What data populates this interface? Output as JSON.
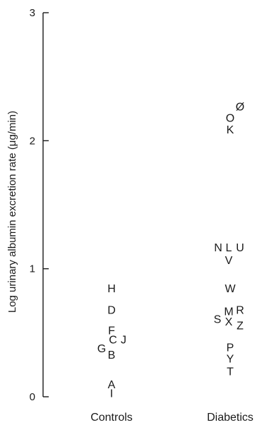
{
  "chart_data": {
    "type": "scatter",
    "title": "",
    "xlabel": "",
    "ylabel": "Log urinary albumin excretion rate (μg/min)",
    "ylim": [
      0,
      3
    ],
    "yticks": [
      "0",
      "1",
      "2",
      "3"
    ],
    "categories": [
      "Controls",
      "Diabetics"
    ],
    "grid": false,
    "series": [
      {
        "points": [
          {
            "label": "H",
            "x": "Controls",
            "y": 0.85
          },
          {
            "label": "D",
            "x": "Controls",
            "y": 0.68
          },
          {
            "label": "F",
            "x": "Controls",
            "y": 0.52
          },
          {
            "label": "C",
            "x": "Controls",
            "y": 0.45
          },
          {
            "label": "J",
            "x": "Controls",
            "y": 0.45
          },
          {
            "label": "G",
            "x": "Controls",
            "y": 0.38
          },
          {
            "label": "B",
            "x": "Controls",
            "y": 0.33
          },
          {
            "label": "A",
            "x": "Controls",
            "y": 0.1
          },
          {
            "label": "I",
            "x": "Controls",
            "y": 0.03
          }
        ]
      },
      {
        "points": [
          {
            "label": "Ø",
            "x": "Diabetics",
            "y": 2.27
          },
          {
            "label": "O",
            "x": "Diabetics",
            "y": 2.18
          },
          {
            "label": "K",
            "x": "Diabetics",
            "y": 2.09
          },
          {
            "label": "N",
            "x": "Diabetics",
            "y": 1.17
          },
          {
            "label": "L",
            "x": "Diabetics",
            "y": 1.17
          },
          {
            "label": "U",
            "x": "Diabetics",
            "y": 1.17
          },
          {
            "label": "V",
            "x": "Diabetics",
            "y": 1.07
          },
          {
            "label": "W",
            "x": "Diabetics",
            "y": 0.85
          },
          {
            "label": "M",
            "x": "Diabetics",
            "y": 0.67
          },
          {
            "label": "R",
            "x": "Diabetics",
            "y": 0.68
          },
          {
            "label": "S",
            "x": "Diabetics",
            "y": 0.61
          },
          {
            "label": "X",
            "x": "Diabetics",
            "y": 0.59
          },
          {
            "label": "Z",
            "x": "Diabetics",
            "y": 0.56
          },
          {
            "label": "P",
            "x": "Diabetics",
            "y": 0.39
          },
          {
            "label": "Y",
            "x": "Diabetics",
            "y": 0.3
          },
          {
            "label": "T",
            "x": "Diabetics",
            "y": 0.2
          }
        ]
      }
    ]
  }
}
